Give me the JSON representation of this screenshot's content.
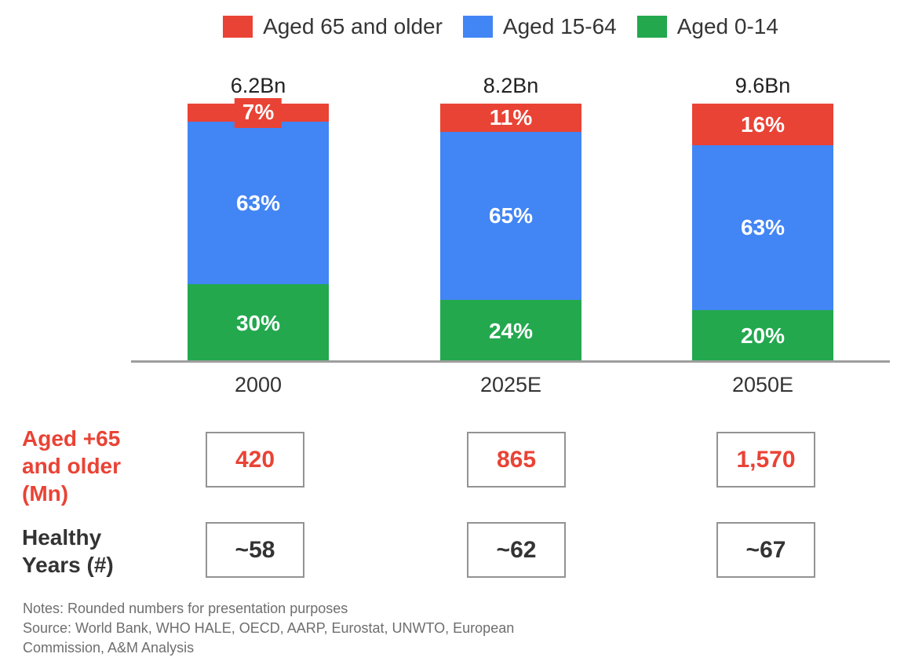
{
  "legend": {
    "items": [
      {
        "label": "Aged 65 and older",
        "color": "#E94335"
      },
      {
        "label": "Aged 15-64",
        "color": "#4285F4"
      },
      {
        "label": "Aged 0-14",
        "color": "#23A84E"
      }
    ]
  },
  "chart_data": {
    "type": "bar",
    "subtype": "stacked-100-percent",
    "categories": [
      "2000",
      "2025E",
      "2050E"
    ],
    "totals": [
      "6.2Bn",
      "8.2Bn",
      "9.6Bn"
    ],
    "series": [
      {
        "name": "Aged 0-14",
        "color": "#23A84E",
        "values": [
          30,
          24,
          20
        ]
      },
      {
        "name": "Aged 15-64",
        "color": "#4285F4",
        "values": [
          63,
          65,
          63
        ]
      },
      {
        "name": "Aged 65 and older",
        "color": "#E94335",
        "values": [
          7,
          11,
          16
        ]
      }
    ],
    "value_suffix": "%",
    "ylim": [
      0,
      100
    ],
    "grid": false,
    "legend_position": "top",
    "axis_color": "#9E9E9E"
  },
  "table": {
    "rows": [
      {
        "label": "Aged +65 and older (Mn)",
        "color": "#E94335",
        "values": [
          "420",
          "865",
          "1,570"
        ]
      },
      {
        "label": "Healthy Years (#)",
        "color": "#333333",
        "values": [
          "~58",
          "~62",
          "~67"
        ]
      }
    ]
  },
  "notes": {
    "line1": "Notes: Rounded numbers for presentation purposes",
    "line2": "Source: World Bank, WHO HALE, OECD, AARP, Eurostat, UNWTO, European Commission, A&M Analysis"
  }
}
